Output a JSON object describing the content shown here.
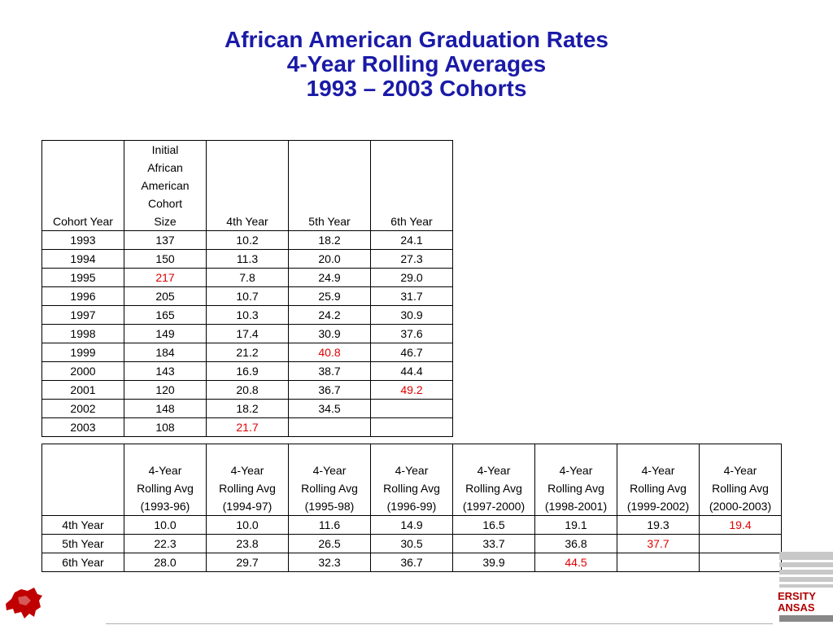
{
  "title": {
    "line1": "African American Graduation Rates",
    "line2": "4-Year Rolling Averages",
    "line3": "1993 – 2003 Cohorts"
  },
  "cohort_table": {
    "headers": [
      "Cohort Year",
      "Initial African American Cohort Size",
      "4th Year",
      "5th Year",
      "6th Year"
    ],
    "rows": [
      [
        "1993",
        "137",
        "10.2",
        "18.2",
        "24.1"
      ],
      [
        "1994",
        "150",
        "11.3",
        "20.0",
        "27.3"
      ],
      [
        "1995",
        "217",
        "7.8",
        "24.9",
        "29.0"
      ],
      [
        "1996",
        "205",
        "10.7",
        "25.9",
        "31.7"
      ],
      [
        "1997",
        "165",
        "10.3",
        "24.2",
        "30.9"
      ],
      [
        "1998",
        "149",
        "17.4",
        "30.9",
        "37.6"
      ],
      [
        "1999",
        "184",
        "21.2",
        "40.8",
        "46.7"
      ],
      [
        "2000",
        "143",
        "16.9",
        "38.7",
        "44.4"
      ],
      [
        "2001",
        "120",
        "20.8",
        "36.7",
        "49.2"
      ],
      [
        "2002",
        "148",
        "18.2",
        "34.5",
        ""
      ],
      [
        "2003",
        "108",
        "21.7",
        "",
        ""
      ]
    ],
    "highlighted_cells": [
      [
        2,
        1
      ],
      [
        6,
        3
      ],
      [
        8,
        4
      ],
      [
        10,
        2
      ]
    ],
    "highlight_color": "#e00000"
  },
  "rolling_table": {
    "headers": [
      "",
      "4-Year Rolling Avg (1993-96)",
      "4-Year Rolling Avg (1994-97)",
      "4-Year Rolling Avg (1995-98)",
      "4-Year Rolling Avg (1996-99)",
      "4-Year Rolling Avg (1997-2000)",
      "4-Year Rolling Avg (1998-2001)",
      "4-Year Rolling Avg (1999-2002)",
      "4-Year Rolling Avg (2000-2003)"
    ],
    "rows": [
      [
        "4th Year",
        "10.0",
        "10.0",
        "11.6",
        "14.9",
        "16.5",
        "19.1",
        "19.3",
        "19.4"
      ],
      [
        "5th Year",
        "22.3",
        "23.8",
        "26.5",
        "30.5",
        "33.7",
        "36.8",
        "37.7",
        ""
      ],
      [
        "6th Year",
        "28.0",
        "29.7",
        "32.3",
        "36.7",
        "39.9",
        "44.5",
        "",
        ""
      ]
    ],
    "highlighted_cells": [
      [
        0,
        8
      ],
      [
        1,
        7
      ],
      [
        2,
        6
      ]
    ],
    "highlight_color": "#e00000"
  },
  "logos": {
    "left_icon": "razorback-icon",
    "right_icon": "university-seal-icon",
    "right_text_line1": "ERSITY",
    "right_text_line2": "ANSAS",
    "brand_color": "#c00000",
    "title_color": "#1a1aa8"
  }
}
